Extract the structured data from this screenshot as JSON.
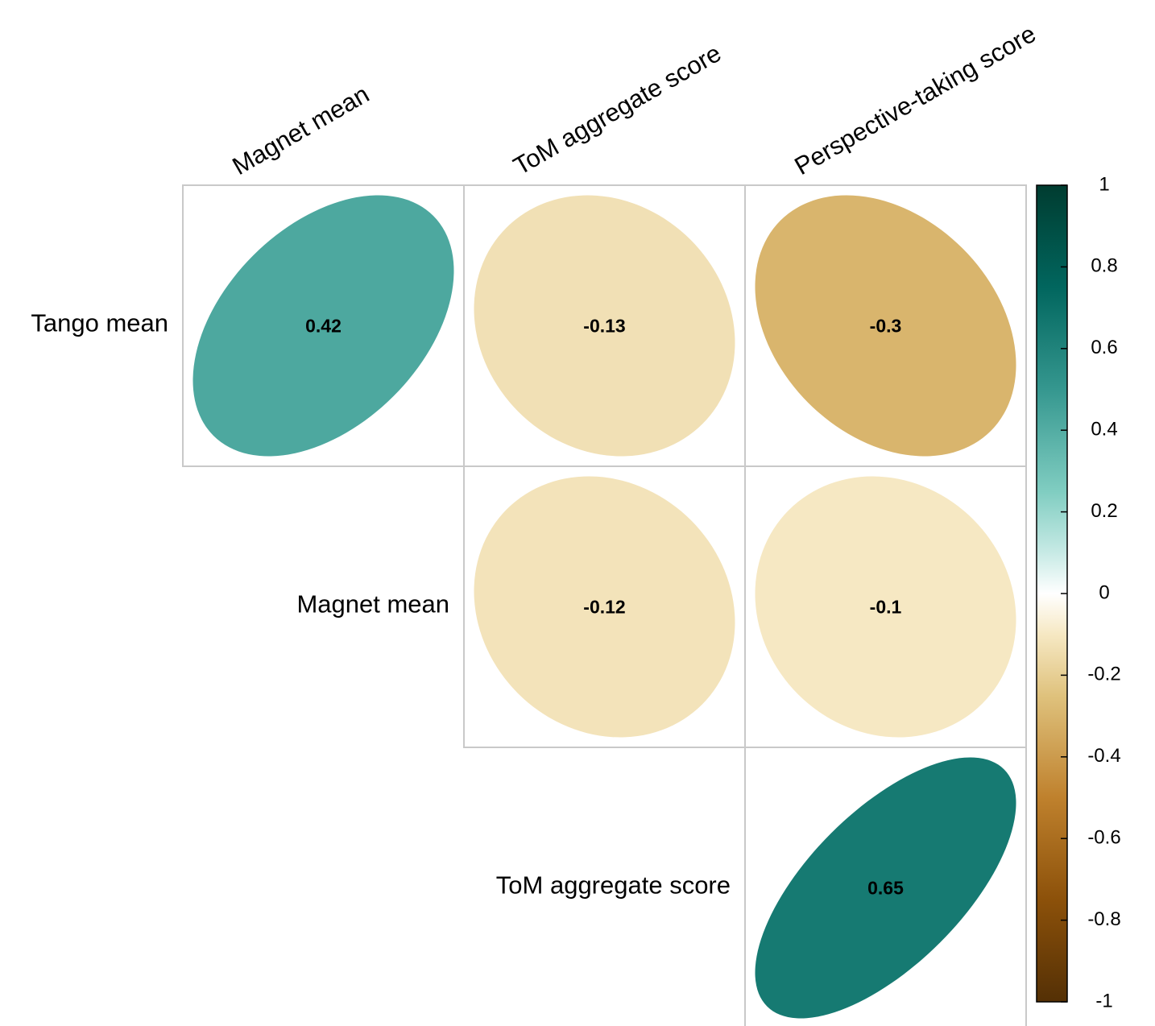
{
  "chart_data": {
    "type": "heatmap",
    "variant": "correlation-ellipse-upper",
    "rows": [
      "Tango mean",
      "Magnet mean",
      "ToM aggregate score"
    ],
    "columns": [
      "Magnet mean",
      "ToM aggregate score",
      "Perspective-taking score"
    ],
    "cells": [
      {
        "row": "Tango mean",
        "column": "Magnet mean",
        "value": 0.42,
        "label": "0.42"
      },
      {
        "row": "Tango mean",
        "column": "ToM aggregate score",
        "value": -0.13,
        "label": "-0.13"
      },
      {
        "row": "Tango mean",
        "column": "Perspective-taking score",
        "value": -0.3,
        "label": "-0.3"
      },
      {
        "row": "Magnet mean",
        "column": "ToM aggregate score",
        "value": -0.12,
        "label": "-0.12"
      },
      {
        "row": "Magnet mean",
        "column": "Perspective-taking score",
        "value": -0.1,
        "label": "-0.1"
      },
      {
        "row": "ToM aggregate score",
        "column": "Perspective-taking score",
        "value": 0.65,
        "label": "0.65"
      }
    ],
    "color_scale": {
      "range": [
        -1,
        1
      ],
      "ticks": [
        "1",
        "0.8",
        "0.6",
        "0.4",
        "0.2",
        "0",
        "-0.2",
        "-0.4",
        "-0.6",
        "-0.8",
        "-1"
      ],
      "stops": [
        {
          "value": -1,
          "color": "#543005"
        },
        {
          "value": -0.75,
          "color": "#8c510a"
        },
        {
          "value": -0.5,
          "color": "#bf812d"
        },
        {
          "value": -0.25,
          "color": "#dfc27d"
        },
        {
          "value": -0.1,
          "color": "#f6e8c3"
        },
        {
          "value": 0,
          "color": "#ffffff"
        },
        {
          "value": 0.1,
          "color": "#c7eae5"
        },
        {
          "value": 0.25,
          "color": "#80cdc1"
        },
        {
          "value": 0.5,
          "color": "#35978f"
        },
        {
          "value": 0.75,
          "color": "#01665e"
        },
        {
          "value": 1,
          "color": "#003c30"
        }
      ]
    },
    "legend_position": "right"
  }
}
